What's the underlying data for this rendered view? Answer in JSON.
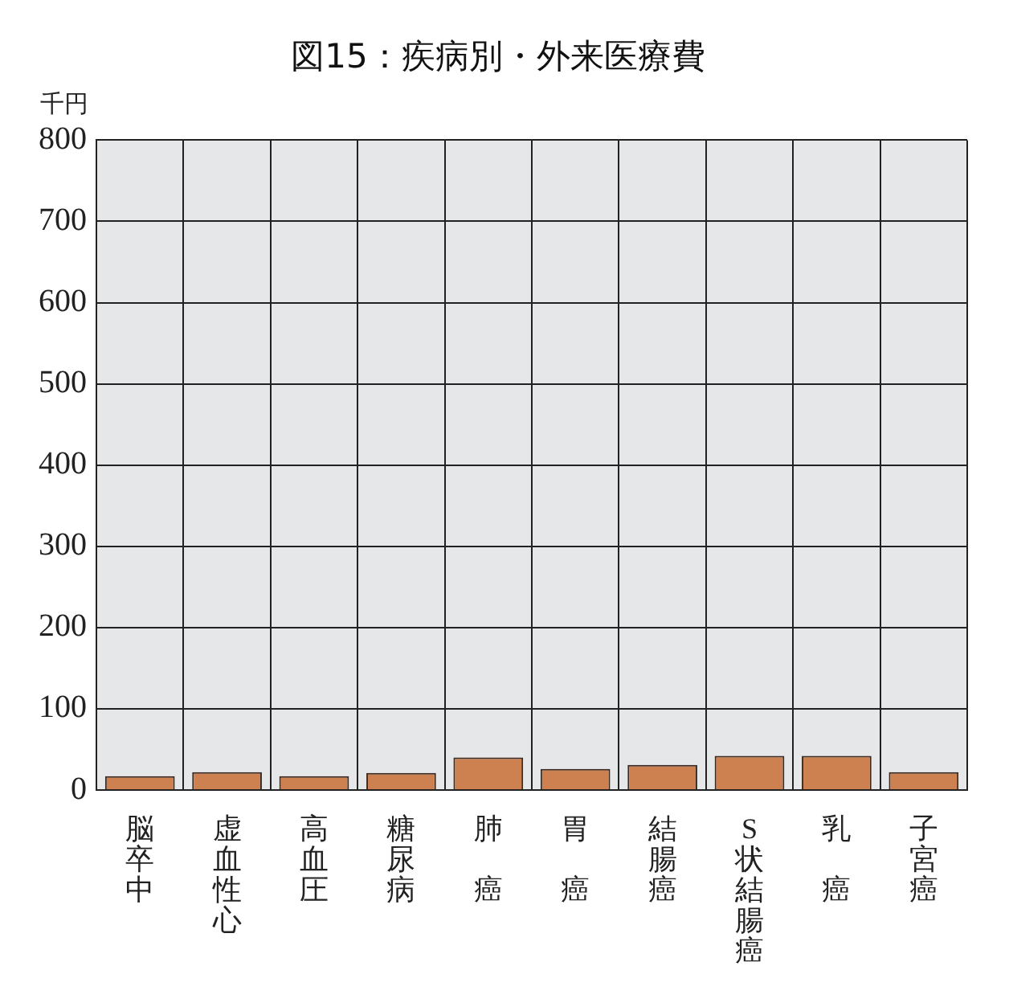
{
  "chart_data": {
    "type": "bar",
    "title": "図15：疾病別・外来医療費",
    "ylabel": "千円",
    "categories": [
      "脳卒中",
      "虚血性心",
      "高血圧",
      "糖尿病",
      "肺癌",
      "胃癌",
      "結腸癌",
      "S状結腸癌",
      "乳癌",
      "子宮癌"
    ],
    "values": [
      17,
      22,
      17,
      21,
      40,
      26,
      31,
      42,
      42,
      22
    ],
    "color": "#cd8150",
    "ylim": [
      0,
      800
    ],
    "yticks": [
      0,
      100,
      200,
      300,
      400,
      500,
      600,
      700,
      800
    ],
    "grid": true,
    "legend": false
  }
}
